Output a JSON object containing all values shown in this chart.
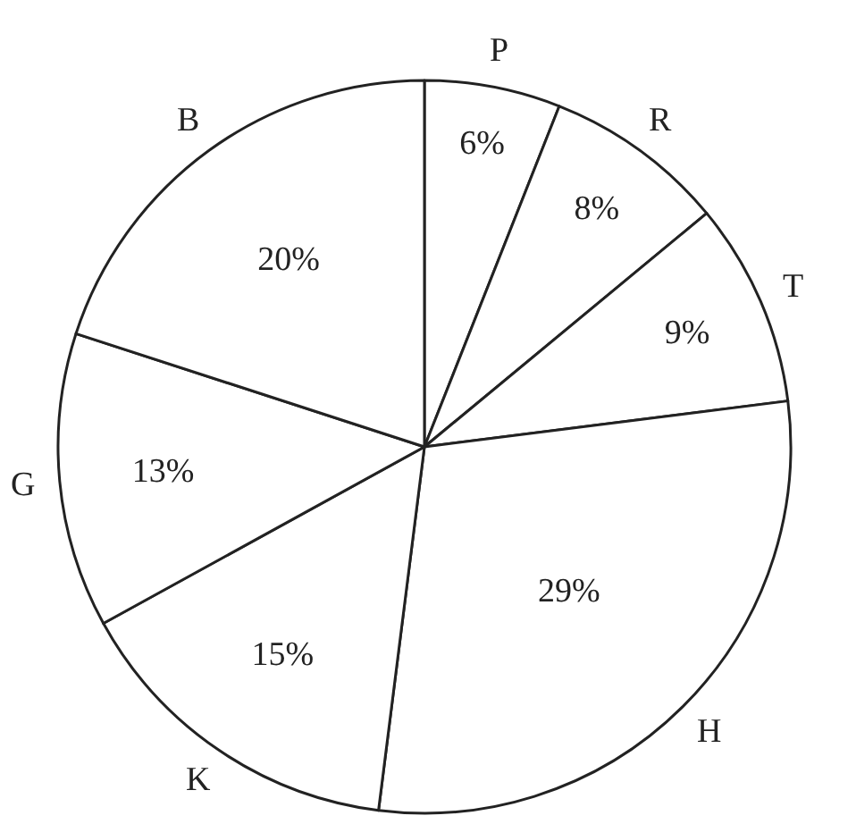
{
  "chart_data": {
    "type": "pie",
    "categories": [
      "P",
      "R",
      "T",
      "H",
      "K",
      "G",
      "B"
    ],
    "values": [
      6,
      8,
      9,
      29,
      15,
      13,
      20
    ],
    "value_labels": [
      "6%",
      "8%",
      "9%",
      "29%",
      "15%",
      "13%",
      "20%"
    ],
    "colors": [
      "#ffffff",
      "#ffffff",
      "#ffffff",
      "#ffffff",
      "#ffffff",
      "#ffffff",
      "#ffffff"
    ],
    "legend": false
  }
}
